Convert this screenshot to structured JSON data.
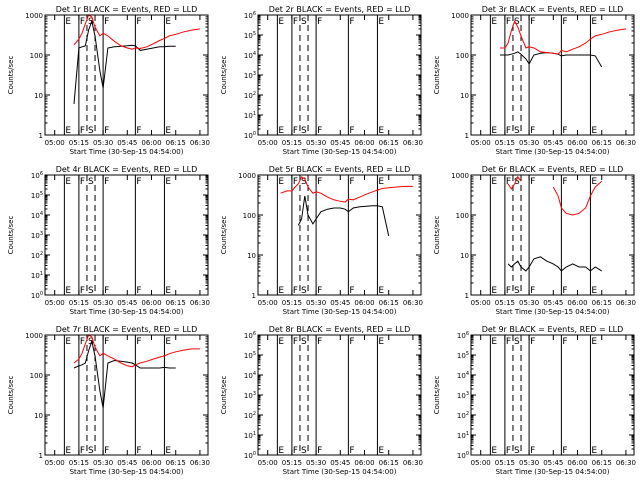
{
  "figure": {
    "xtick_labels": [
      "05:00",
      "05:15",
      "05:30",
      "05:45",
      "06:00",
      "06:15",
      "06:30"
    ],
    "xlabel": "Start Time (30-Sep-15 04:54:00)",
    "ylabel": "Counts/sec",
    "colors": {
      "events": "#000000",
      "lld": "#ff0000",
      "axes": "#000000"
    }
  },
  "chart_data": [
    {
      "type": "line",
      "title": "Det 1r  BLACK = Events,  RED = LLD",
      "ylim": [
        1,
        1000
      ],
      "yscale": "log",
      "ytick_labels": [
        "1",
        "10",
        "100",
        "1000"
      ],
      "markers": [
        {
          "x": "05:06",
          "label": "E",
          "style": "solid"
        },
        {
          "x": "05:15",
          "label": "F",
          "style": "solid"
        },
        {
          "x": "05:20",
          "label": "S",
          "style": "dashed"
        },
        {
          "x": "05:25",
          "label": "",
          "style": "dashed"
        },
        {
          "x": "05:30",
          "label": "F",
          "style": "solid"
        },
        {
          "x": "05:50",
          "label": "F",
          "style": "solid"
        },
        {
          "x": "06:08",
          "label": "E",
          "style": "solid"
        }
      ],
      "x": [
        "05:08",
        "05:12",
        "05:15",
        "05:17",
        "05:19",
        "05:21",
        "05:23",
        "05:25",
        "05:28",
        "05:30",
        "05:33",
        "05:37",
        "05:41",
        "05:45",
        "05:48",
        "05:50",
        "05:53",
        "05:57",
        "06:01",
        "06:05",
        "06:08",
        "06:11",
        "06:15",
        "06:20",
        "06:25",
        "06:30"
      ],
      "series": [
        {
          "name": "Events",
          "values": [
            null,
            6,
            150,
            160,
            170,
            420,
            700,
            300,
            40,
            15,
            150,
            160,
            165,
            170,
            175,
            170,
            130,
            140,
            150,
            160,
            160,
            165,
            165,
            null,
            null,
            null
          ]
        },
        {
          "name": "LLD",
          "values": [
            null,
            180,
            250,
            350,
            600,
            1000,
            900,
            500,
            300,
            350,
            300,
            220,
            170,
            150,
            140,
            150,
            145,
            160,
            190,
            230,
            260,
            300,
            330,
            380,
            420,
            450
          ]
        }
      ]
    },
    {
      "type": "line",
      "title": "Det 2r  BLACK = Events,  RED = LLD",
      "ylim": [
        1,
        1000000
      ],
      "yscale": "log",
      "ytick_labels": [
        "10^0",
        "10^1",
        "10^2",
        "10^3",
        "10^4",
        "10^5",
        "10^6"
      ],
      "markers": [
        {
          "x": "05:06",
          "label": "E",
          "style": "solid"
        },
        {
          "x": "05:15",
          "label": "F",
          "style": "solid"
        },
        {
          "x": "05:20",
          "label": "S",
          "style": "dashed"
        },
        {
          "x": "05:25",
          "label": "",
          "style": "dashed"
        },
        {
          "x": "05:30",
          "label": "F",
          "style": "solid"
        },
        {
          "x": "05:50",
          "label": "F",
          "style": "solid"
        },
        {
          "x": "06:08",
          "label": "E",
          "style": "solid"
        }
      ],
      "x": [],
      "series": []
    },
    {
      "type": "line",
      "title": "Det 3r  BLACK = Events,  RED = LLD",
      "ylim": [
        1,
        1000
      ],
      "yscale": "log",
      "ytick_labels": [
        "1",
        "10",
        "100",
        "1000"
      ],
      "markers": [
        {
          "x": "05:06",
          "label": "E",
          "style": "solid"
        },
        {
          "x": "05:15",
          "label": "F",
          "style": "solid"
        },
        {
          "x": "05:20",
          "label": "S",
          "style": "dashed"
        },
        {
          "x": "05:25",
          "label": "",
          "style": "dashed"
        },
        {
          "x": "05:30",
          "label": "F",
          "style": "solid"
        },
        {
          "x": "05:50",
          "label": "F",
          "style": "solid"
        },
        {
          "x": "06:08",
          "label": "E",
          "style": "solid"
        }
      ],
      "x": [
        "05:08",
        "05:12",
        "05:15",
        "05:17",
        "05:19",
        "05:21",
        "05:23",
        "05:25",
        "05:28",
        "05:30",
        "05:33",
        "05:37",
        "05:41",
        "05:45",
        "05:48",
        "05:50",
        "05:53",
        "05:57",
        "06:01",
        "06:05",
        "06:08",
        "06:11",
        "06:15",
        "06:20",
        "06:25",
        "06:30"
      ],
      "series": [
        {
          "name": "Events",
          "values": [
            null,
            100,
            100,
            100,
            105,
            110,
            120,
            105,
            80,
            60,
            100,
            110,
            115,
            110,
            105,
            95,
            100,
            100,
            100,
            100,
            100,
            95,
            50,
            null,
            null,
            null
          ]
        },
        {
          "name": "LLD",
          "values": [
            null,
            150,
            150,
            200,
            400,
            700,
            500,
            300,
            150,
            160,
            150,
            120,
            115,
            110,
            105,
            130,
            120,
            140,
            160,
            200,
            250,
            300,
            330,
            380,
            420,
            450
          ]
        }
      ]
    },
    {
      "type": "line",
      "title": "Det 4r  BLACK = Events,  RED = LLD",
      "ylim": [
        1,
        1000000
      ],
      "yscale": "log",
      "ytick_labels": [
        "10^0",
        "10^1",
        "10^2",
        "10^3",
        "10^4",
        "10^5",
        "10^6"
      ],
      "markers": [
        {
          "x": "05:06",
          "label": "E",
          "style": "solid"
        },
        {
          "x": "05:15",
          "label": "F",
          "style": "solid"
        },
        {
          "x": "05:20",
          "label": "S",
          "style": "dashed"
        },
        {
          "x": "05:25",
          "label": "",
          "style": "dashed"
        },
        {
          "x": "05:30",
          "label": "F",
          "style": "solid"
        },
        {
          "x": "05:50",
          "label": "F",
          "style": "solid"
        },
        {
          "x": "06:08",
          "label": "E",
          "style": "solid"
        }
      ],
      "x": [],
      "series": []
    },
    {
      "type": "line",
      "title": "Det 5r  BLACK = Events,  RED = LLD",
      "ylim": [
        1,
        1000
      ],
      "yscale": "log",
      "ytick_labels": [
        "1",
        "10",
        "100",
        "1000"
      ],
      "markers": [
        {
          "x": "05:06",
          "label": "E",
          "style": "solid"
        },
        {
          "x": "05:15",
          "label": "F",
          "style": "solid"
        },
        {
          "x": "05:20",
          "label": "S",
          "style": "dashed"
        },
        {
          "x": "05:25",
          "label": "",
          "style": "dashed"
        },
        {
          "x": "05:30",
          "label": "F",
          "style": "solid"
        },
        {
          "x": "05:50",
          "label": "F",
          "style": "solid"
        },
        {
          "x": "06:08",
          "label": "E",
          "style": "solid"
        }
      ],
      "x": [
        "05:08",
        "05:12",
        "05:15",
        "05:17",
        "05:19",
        "05:21",
        "05:23",
        "05:25",
        "05:28",
        "05:30",
        "05:33",
        "05:37",
        "05:41",
        "05:45",
        "05:48",
        "05:50",
        "05:53",
        "05:57",
        "06:01",
        "06:05",
        "06:08",
        "06:11",
        "06:15",
        "06:20",
        "06:25",
        "06:30"
      ],
      "series": [
        {
          "name": "Events",
          "values": [
            null,
            null,
            null,
            null,
            55,
            80,
            300,
            100,
            60,
            80,
            120,
            140,
            150,
            150,
            140,
            120,
            150,
            160,
            165,
            170,
            170,
            160,
            30,
            null,
            null,
            null
          ]
        },
        {
          "name": "LLD",
          "values": [
            350,
            400,
            400,
            500,
            600,
            900,
            800,
            500,
            350,
            380,
            350,
            280,
            240,
            220,
            210,
            250,
            240,
            280,
            330,
            380,
            420,
            460,
            480,
            500,
            520,
            520
          ]
        }
      ]
    },
    {
      "type": "line",
      "title": "Det 6r  BLACK = Events,  RED = LLD",
      "ylim": [
        1,
        1000
      ],
      "yscale": "log",
      "ytick_labels": [
        "1",
        "10",
        "100",
        "1000"
      ],
      "markers": [
        {
          "x": "05:06",
          "label": "E",
          "style": "solid"
        },
        {
          "x": "05:15",
          "label": "F",
          "style": "solid"
        },
        {
          "x": "05:20",
          "label": "S",
          "style": "dashed"
        },
        {
          "x": "05:25",
          "label": "",
          "style": "dashed"
        },
        {
          "x": "05:30",
          "label": "F",
          "style": "solid"
        },
        {
          "x": "05:50",
          "label": "F",
          "style": "solid"
        },
        {
          "x": "06:08",
          "label": "E",
          "style": "solid"
        }
      ],
      "x": [
        "05:08",
        "05:12",
        "05:15",
        "05:17",
        "05:19",
        "05:21",
        "05:23",
        "05:25",
        "05:28",
        "05:30",
        "05:33",
        "05:37",
        "05:41",
        "05:45",
        "05:48",
        "05:50",
        "05:53",
        "05:57",
        "06:01",
        "06:05",
        "06:08",
        "06:11",
        "06:15",
        "06:20",
        "06:25",
        "06:30"
      ],
      "series": [
        {
          "name": "Events",
          "values": [
            null,
            null,
            null,
            6,
            5,
            6,
            7,
            5,
            4,
            5,
            8,
            9,
            7,
            6,
            5,
            4,
            5,
            6,
            5,
            5,
            4,
            5,
            4,
            null,
            null,
            null
          ]
        },
        {
          "name": "LLD",
          "values": [
            null,
            null,
            null,
            600,
            450,
            600,
            900,
            700,
            null,
            null,
            null,
            null,
            null,
            500,
            300,
            150,
            110,
            100,
            110,
            150,
            300,
            500,
            700,
            null,
            null,
            null
          ]
        }
      ]
    },
    {
      "type": "line",
      "title": "Det 7r  BLACK = Events,  RED = LLD",
      "ylim": [
        1,
        1000
      ],
      "yscale": "log",
      "ytick_labels": [
        "1",
        "10",
        "100",
        "1000"
      ],
      "markers": [
        {
          "x": "05:06",
          "label": "E",
          "style": "solid"
        },
        {
          "x": "05:15",
          "label": "F",
          "style": "solid"
        },
        {
          "x": "05:20",
          "label": "S",
          "style": "dashed"
        },
        {
          "x": "05:25",
          "label": "",
          "style": "dashed"
        },
        {
          "x": "05:30",
          "label": "F",
          "style": "solid"
        },
        {
          "x": "05:50",
          "label": "F",
          "style": "solid"
        },
        {
          "x": "06:08",
          "label": "E",
          "style": "solid"
        }
      ],
      "x": [
        "05:08",
        "05:12",
        "05:15",
        "05:17",
        "05:19",
        "05:21",
        "05:23",
        "05:25",
        "05:28",
        "05:30",
        "05:33",
        "05:37",
        "05:41",
        "05:45",
        "05:48",
        "05:50",
        "05:53",
        "05:57",
        "06:01",
        "06:05",
        "06:08",
        "06:11",
        "06:15",
        "06:20",
        "06:25",
        "06:30"
      ],
      "series": [
        {
          "name": "Events",
          "values": [
            null,
            150,
            170,
            180,
            200,
            400,
            700,
            300,
            40,
            15,
            200,
            230,
            220,
            210,
            200,
            180,
            150,
            150,
            150,
            150,
            155,
            150,
            150,
            null,
            null,
            null
          ]
        },
        {
          "name": "LLD",
          "values": [
            null,
            200,
            250,
            350,
            600,
            1000,
            900,
            500,
            300,
            350,
            300,
            250,
            200,
            170,
            160,
            180,
            200,
            220,
            250,
            280,
            300,
            340,
            380,
            420,
            450,
            450
          ]
        }
      ]
    },
    {
      "type": "line",
      "title": "Det 8r  BLACK = Events,  RED = LLD",
      "ylim": [
        1,
        1000000
      ],
      "yscale": "log",
      "ytick_labels": [
        "10^0",
        "10^1",
        "10^2",
        "10^3",
        "10^4",
        "10^5",
        "10^6"
      ],
      "markers": [
        {
          "x": "05:06",
          "label": "E",
          "style": "solid"
        },
        {
          "x": "05:15",
          "label": "F",
          "style": "solid"
        },
        {
          "x": "05:20",
          "label": "S",
          "style": "dashed"
        },
        {
          "x": "05:25",
          "label": "",
          "style": "dashed"
        },
        {
          "x": "05:30",
          "label": "F",
          "style": "solid"
        },
        {
          "x": "05:50",
          "label": "F",
          "style": "solid"
        },
        {
          "x": "06:08",
          "label": "E",
          "style": "solid"
        }
      ],
      "x": [],
      "series": []
    },
    {
      "type": "line",
      "title": "Det 9r  BLACK = Events,  RED = LLD",
      "ylim": [
        1,
        1000000
      ],
      "yscale": "log",
      "ytick_labels": [
        "10^0",
        "10^1",
        "10^2",
        "10^3",
        "10^4",
        "10^5",
        "10^6"
      ],
      "markers": [
        {
          "x": "05:06",
          "label": "E",
          "style": "solid"
        },
        {
          "x": "05:15",
          "label": "F",
          "style": "solid"
        },
        {
          "x": "05:20",
          "label": "S",
          "style": "dashed"
        },
        {
          "x": "05:25",
          "label": "",
          "style": "dashed"
        },
        {
          "x": "05:30",
          "label": "F",
          "style": "solid"
        },
        {
          "x": "05:50",
          "label": "F",
          "style": "solid"
        },
        {
          "x": "06:08",
          "label": "E",
          "style": "solid"
        }
      ],
      "x": [],
      "series": []
    }
  ]
}
